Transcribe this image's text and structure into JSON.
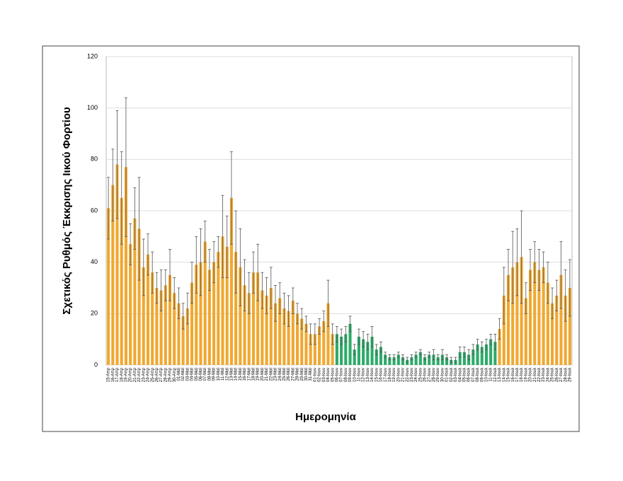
{
  "chart_data": {
    "type": "bar",
    "y_label": "Σχετικός Ρυθμός Έκκρισης Ιικού Φορτίου",
    "x_label": "Ημερομηνία",
    "categories": [
      "15-Απρ",
      "16-Απρ",
      "17-Απρ",
      "18-Απρ",
      "19-Απρ",
      "20-Απρ",
      "21-Απρ",
      "22-Απρ",
      "23-Απρ",
      "24-Απρ",
      "25-Απρ",
      "26-Απρ",
      "27-Απρ",
      "28-Απρ",
      "29-Απρ",
      "30-Απρ",
      "01-Μαϊ",
      "02-Μαϊ",
      "03-Μαϊ",
      "04-Μαϊ",
      "05-Μαϊ",
      "06-Μαϊ",
      "07-Μαϊ",
      "08-Μαϊ",
      "09-Μαϊ",
      "10-Μαϊ",
      "11-Μαϊ",
      "12-Μαϊ",
      "13-Μαϊ",
      "14-Μαϊ",
      "15-Μαϊ",
      "16-Μαϊ",
      "17-Μαϊ",
      "18-Μαϊ",
      "19-Μαϊ",
      "20-Μαϊ",
      "21-Μαϊ",
      "22-Μαϊ",
      "23-Μαϊ",
      "24-Μαϊ",
      "25-Μαϊ",
      "26-Μαϊ",
      "27-Μαϊ",
      "28-Μαϊ",
      "29-Μαϊ",
      "30-Μαϊ",
      "31-Μαϊ",
      "01-Ιουν",
      "02-Ιουν",
      "03-Ιουν",
      "04-Ιουν",
      "05-Ιουν",
      "06-Ιουν",
      "07-Ιουν",
      "08-Ιουν",
      "09-Ιουν",
      "10-Ιουν",
      "11-Ιουν",
      "12-Ιουν",
      "13-Ιουν",
      "14-Ιουν",
      "15-Ιουν",
      "16-Ιουν",
      "17-Ιουν",
      "18-Ιουν",
      "19-Ιουν",
      "20-Ιουν",
      "21-Ιουν",
      "22-Ιουν",
      "23-Ιουν",
      "24-Ιουν",
      "25-Ιουν",
      "26-Ιουν",
      "27-Ιουν",
      "28-Ιουν",
      "29-Ιουν",
      "30-Ιουν",
      "01-Ιουλ",
      "02-Ιουλ",
      "03-Ιουλ",
      "04-Ιουλ",
      "05-Ιουλ",
      "06-Ιουλ",
      "07-Ιουλ",
      "08-Ιουλ",
      "09-Ιουλ",
      "10-Ιουλ",
      "11-Ιουλ",
      "12-Ιουλ",
      "13-Ιουλ",
      "14-Ιουλ",
      "15-Ιουλ",
      "16-Ιουλ",
      "17-Ιουλ",
      "18-Ιουλ",
      "19-Ιουλ",
      "20-Ιουλ",
      "21-Ιουλ",
      "22-Ιουλ",
      "23-Ιουλ",
      "24-Ιουλ",
      "25-Ιουλ",
      "26-Ιουλ",
      "27-Ιουλ",
      "28-Ιουλ",
      "29-Ιουλ"
    ],
    "series": [
      {
        "color": "#f0a830",
        "values": [
          61,
          70,
          78,
          65,
          77,
          47,
          57,
          53,
          38,
          43,
          36,
          30,
          29,
          31,
          35,
          28,
          24,
          19,
          22,
          32,
          39,
          40,
          48,
          37,
          40,
          44,
          50,
          46,
          65,
          44,
          38,
          31,
          28,
          36,
          36,
          29,
          27,
          30,
          24,
          26,
          22,
          21,
          25,
          20,
          18,
          16,
          12,
          12,
          15,
          17,
          24,
          12,
          null,
          null,
          null,
          null,
          null,
          null,
          null,
          null,
          null,
          null,
          null,
          null,
          null,
          null,
          null,
          null,
          null,
          null,
          null,
          null,
          null,
          null,
          null,
          null,
          null,
          null,
          null,
          null,
          null,
          null,
          null,
          null,
          null,
          null,
          null,
          null,
          null,
          14,
          27,
          35,
          38,
          40,
          42,
          26,
          37,
          40,
          37,
          38,
          32,
          24,
          27,
          35,
          27,
          30
        ],
        "errors": [
          12,
          14,
          21,
          18,
          27,
          8,
          12,
          20,
          11,
          8,
          8,
          6,
          8,
          6,
          10,
          6,
          6,
          5,
          6,
          8,
          11,
          13,
          8,
          8,
          8,
          6,
          16,
          12,
          18,
          16,
          15,
          10,
          8,
          8,
          11,
          7,
          7,
          8,
          7,
          6,
          6,
          6,
          5,
          4,
          4,
          3,
          4,
          4,
          3,
          4,
          9,
          4,
          null,
          null,
          null,
          null,
          null,
          null,
          null,
          null,
          null,
          null,
          null,
          null,
          null,
          null,
          null,
          null,
          null,
          null,
          null,
          null,
          null,
          null,
          null,
          null,
          null,
          null,
          null,
          null,
          null,
          null,
          null,
          null,
          null,
          null,
          null,
          null,
          null,
          4,
          11,
          10,
          14,
          13,
          18,
          6,
          8,
          8,
          8,
          6,
          8,
          6,
          6,
          13,
          10,
          11
        ]
      },
      {
        "color": "#2eaa6a",
        "values": [
          null,
          null,
          null,
          null,
          null,
          null,
          null,
          null,
          null,
          null,
          null,
          null,
          null,
          null,
          null,
          null,
          null,
          null,
          null,
          null,
          null,
          null,
          null,
          null,
          null,
          null,
          null,
          null,
          null,
          null,
          null,
          null,
          null,
          null,
          null,
          null,
          null,
          null,
          null,
          null,
          null,
          null,
          null,
          null,
          null,
          null,
          null,
          null,
          null,
          null,
          null,
          null,
          12,
          11,
          12,
          16,
          6,
          11,
          10,
          9,
          11,
          6,
          7,
          4,
          3,
          3,
          4,
          3,
          2,
          3,
          4,
          5,
          3,
          4,
          4,
          3,
          4,
          3,
          2,
          2,
          5,
          5,
          4,
          6,
          8,
          7,
          8,
          10,
          9,
          null,
          null,
          null,
          null,
          null,
          null,
          null,
          null,
          null,
          null,
          null,
          null,
          null,
          null,
          null,
          null,
          null
        ],
        "errors": [
          null,
          null,
          null,
          null,
          null,
          null,
          null,
          null,
          null,
          null,
          null,
          null,
          null,
          null,
          null,
          null,
          null,
          null,
          null,
          null,
          null,
          null,
          null,
          null,
          null,
          null,
          null,
          null,
          null,
          null,
          null,
          null,
          null,
          null,
          null,
          null,
          null,
          null,
          null,
          null,
          null,
          null,
          null,
          null,
          null,
          null,
          null,
          null,
          null,
          null,
          null,
          null,
          3,
          3,
          3,
          3,
          2,
          3,
          3,
          3,
          4,
          2,
          2,
          1,
          1,
          1,
          1,
          1,
          1,
          1,
          1,
          1,
          1,
          1,
          2,
          1,
          2,
          1,
          1,
          1,
          2,
          2,
          2,
          2,
          2,
          2,
          2,
          2,
          3,
          null,
          null,
          null,
          null,
          null,
          null,
          null,
          null,
          null,
          null,
          null,
          null,
          null,
          null,
          null,
          null,
          null
        ]
      }
    ],
    "ylim": [
      0,
      120
    ],
    "yticks": [
      0,
      20,
      40,
      60,
      80,
      100,
      120
    ],
    "grid": true
  }
}
